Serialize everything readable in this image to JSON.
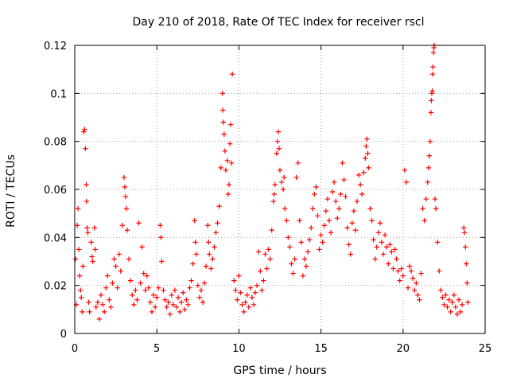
{
  "chart_data": {
    "type": "scatter",
    "title": "Day 210 of 2018, Rate Of TEC Index for receiver rscl",
    "xlabel": "GPS time / hours",
    "ylabel": "ROTI / TECUs",
    "xlim": [
      0,
      25
    ],
    "ylim": [
      0,
      0.12
    ],
    "xticks": [
      0,
      5,
      10,
      15,
      20,
      25
    ],
    "yticks": [
      0,
      0.02,
      0.04,
      0.06,
      0.08,
      0.1,
      0.12
    ],
    "xtick_labels": [
      "0",
      "5",
      "10",
      "15",
      "20",
      "25"
    ],
    "ytick_labels": [
      "0",
      "0.02",
      "0.04",
      "0.06",
      "0.08",
      "0.1",
      "0.12"
    ],
    "grid": true,
    "marker": "+",
    "series": [
      {
        "name": "ROTI",
        "color": "#ff0000",
        "points": [
          [
            0.05,
            0.031
          ],
          [
            0.1,
            0.012
          ],
          [
            0.15,
            0.045
          ],
          [
            0.2,
            0.052
          ],
          [
            0.25,
            0.035
          ],
          [
            0.3,
            0.024
          ],
          [
            0.35,
            0.018
          ],
          [
            0.4,
            0.015
          ],
          [
            0.45,
            0.009
          ],
          [
            0.5,
            0.028
          ],
          [
            0.55,
            0.084
          ],
          [
            0.6,
            0.085
          ],
          [
            0.65,
            0.077
          ],
          [
            0.7,
            0.062
          ],
          [
            0.72,
            0.055
          ],
          [
            0.75,
            0.044
          ],
          [
            0.8,
            0.042
          ],
          [
            0.85,
            0.013
          ],
          [
            0.9,
            0.009
          ],
          [
            1.0,
            0.038
          ],
          [
            1.05,
            0.032
          ],
          [
            1.1,
            0.03
          ],
          [
            1.2,
            0.044
          ],
          [
            1.25,
            0.035
          ],
          [
            1.3,
            0.011
          ],
          [
            1.4,
            0.013
          ],
          [
            1.5,
            0.006
          ],
          [
            1.6,
            0.016
          ],
          [
            1.7,
            0.012
          ],
          [
            1.8,
            0.009
          ],
          [
            1.9,
            0.019
          ],
          [
            2.0,
            0.024
          ],
          [
            2.1,
            0.014
          ],
          [
            2.2,
            0.011
          ],
          [
            2.3,
            0.021
          ],
          [
            2.4,
            0.031
          ],
          [
            2.5,
            0.028
          ],
          [
            2.6,
            0.019
          ],
          [
            2.7,
            0.033
          ],
          [
            2.8,
            0.026
          ],
          [
            2.9,
            0.045
          ],
          [
            3.0,
            0.065
          ],
          [
            3.05,
            0.061
          ],
          [
            3.1,
            0.057
          ],
          [
            3.15,
            0.052
          ],
          [
            3.2,
            0.043
          ],
          [
            3.3,
            0.031
          ],
          [
            3.4,
            0.022
          ],
          [
            3.5,
            0.016
          ],
          [
            3.6,
            0.012
          ],
          [
            3.7,
            0.018
          ],
          [
            3.8,
            0.014
          ],
          [
            3.9,
            0.046
          ],
          [
            4.0,
            0.021
          ],
          [
            4.1,
            0.036
          ],
          [
            4.2,
            0.025
          ],
          [
            4.3,
            0.018
          ],
          [
            4.4,
            0.024
          ],
          [
            4.5,
            0.019
          ],
          [
            4.6,
            0.013
          ],
          [
            4.7,
            0.009
          ],
          [
            4.8,
            0.016
          ],
          [
            4.9,
            0.011
          ],
          [
            5.0,
            0.015
          ],
          [
            5.1,
            0.019
          ],
          [
            5.2,
            0.045
          ],
          [
            5.25,
            0.04
          ],
          [
            5.3,
            0.03
          ],
          [
            5.4,
            0.018
          ],
          [
            5.5,
            0.014
          ],
          [
            5.6,
            0.011
          ],
          [
            5.7,
            0.013
          ],
          [
            5.8,
            0.008
          ],
          [
            5.9,
            0.016
          ],
          [
            6.0,
            0.012
          ],
          [
            6.1,
            0.018
          ],
          [
            6.2,
            0.011
          ],
          [
            6.3,
            0.015
          ],
          [
            6.4,
            0.009
          ],
          [
            6.5,
            0.013
          ],
          [
            6.6,
            0.017
          ],
          [
            6.7,
            0.01
          ],
          [
            6.8,
            0.014
          ],
          [
            6.9,
            0.012
          ],
          [
            7.0,
            0.019
          ],
          [
            7.1,
            0.022
          ],
          [
            7.2,
            0.029
          ],
          [
            7.3,
            0.047
          ],
          [
            7.35,
            0.038
          ],
          [
            7.4,
            0.033
          ],
          [
            7.5,
            0.02
          ],
          [
            7.6,
            0.015
          ],
          [
            7.7,
            0.018
          ],
          [
            7.8,
            0.013
          ],
          [
            7.9,
            0.021
          ],
          [
            8.0,
            0.028
          ],
          [
            8.1,
            0.045
          ],
          [
            8.15,
            0.038
          ],
          [
            8.2,
            0.033
          ],
          [
            8.3,
            0.027
          ],
          [
            8.4,
            0.031
          ],
          [
            8.5,
            0.036
          ],
          [
            8.6,
            0.042
          ],
          [
            8.7,
            0.046
          ],
          [
            8.8,
            0.053
          ],
          [
            8.9,
            0.069
          ],
          [
            9.0,
            0.1
          ],
          [
            9.02,
            0.093
          ],
          [
            9.05,
            0.088
          ],
          [
            9.1,
            0.083
          ],
          [
            9.15,
            0.076
          ],
          [
            9.2,
            0.068
          ],
          [
            9.3,
            0.072
          ],
          [
            9.35,
            0.058
          ],
          [
            9.4,
            0.062
          ],
          [
            9.45,
            0.079
          ],
          [
            9.5,
            0.087
          ],
          [
            9.55,
            0.071
          ],
          [
            9.6,
            0.108
          ],
          [
            9.7,
            0.022
          ],
          [
            9.8,
            0.018
          ],
          [
            9.9,
            0.014
          ],
          [
            10.0,
            0.024
          ],
          [
            10.1,
            0.017
          ],
          [
            10.2,
            0.012
          ],
          [
            10.3,
            0.009
          ],
          [
            10.4,
            0.013
          ],
          [
            10.5,
            0.016
          ],
          [
            10.6,
            0.011
          ],
          [
            10.7,
            0.019
          ],
          [
            10.8,
            0.015
          ],
          [
            10.9,
            0.012
          ],
          [
            11.0,
            0.017
          ],
          [
            11.1,
            0.02
          ],
          [
            11.2,
            0.034
          ],
          [
            11.3,
            0.026
          ],
          [
            11.4,
            0.018
          ],
          [
            11.5,
            0.022
          ],
          [
            11.6,
            0.033
          ],
          [
            11.7,
            0.027
          ],
          [
            11.8,
            0.035
          ],
          [
            11.9,
            0.031
          ],
          [
            12.0,
            0.043
          ],
          [
            12.1,
            0.055
          ],
          [
            12.15,
            0.058
          ],
          [
            12.2,
            0.062
          ],
          [
            12.3,
            0.075
          ],
          [
            12.35,
            0.08
          ],
          [
            12.4,
            0.084
          ],
          [
            12.45,
            0.077
          ],
          [
            12.5,
            0.068
          ],
          [
            12.6,
            0.063
          ],
          [
            12.7,
            0.06
          ],
          [
            12.75,
            0.065
          ],
          [
            12.8,
            0.052
          ],
          [
            12.9,
            0.047
          ],
          [
            13.0,
            0.04
          ],
          [
            13.1,
            0.036
          ],
          [
            13.2,
            0.029
          ],
          [
            13.3,
            0.025
          ],
          [
            13.4,
            0.031
          ],
          [
            13.5,
            0.065
          ],
          [
            13.6,
            0.071
          ],
          [
            13.7,
            0.047
          ],
          [
            13.8,
            0.038
          ],
          [
            13.9,
            0.024
          ],
          [
            14.0,
            0.031
          ],
          [
            14.1,
            0.028
          ],
          [
            14.2,
            0.034
          ],
          [
            14.3,
            0.039
          ],
          [
            14.4,
            0.044
          ],
          [
            14.5,
            0.052
          ],
          [
            14.6,
            0.058
          ],
          [
            14.7,
            0.061
          ],
          [
            14.8,
            0.049
          ],
          [
            14.9,
            0.035
          ],
          [
            15.0,
            0.041
          ],
          [
            15.1,
            0.038
          ],
          [
            15.2,
            0.045
          ],
          [
            15.3,
            0.051
          ],
          [
            15.4,
            0.056
          ],
          [
            15.5,
            0.047
          ],
          [
            15.6,
            0.042
          ],
          [
            15.7,
            0.059
          ],
          [
            15.8,
            0.063
          ],
          [
            15.9,
            0.055
          ],
          [
            16.0,
            0.048
          ],
          [
            16.1,
            0.052
          ],
          [
            16.2,
            0.058
          ],
          [
            16.3,
            0.071
          ],
          [
            16.4,
            0.064
          ],
          [
            16.5,
            0.057
          ],
          [
            16.6,
            0.044
          ],
          [
            16.7,
            0.037
          ],
          [
            16.8,
            0.033
          ],
          [
            16.9,
            0.046
          ],
          [
            17.0,
            0.051
          ],
          [
            17.1,
            0.043
          ],
          [
            17.2,
            0.055
          ],
          [
            17.3,
            0.066
          ],
          [
            17.4,
            0.062
          ],
          [
            17.5,
            0.058
          ],
          [
            17.6,
            0.067
          ],
          [
            17.7,
            0.073
          ],
          [
            17.75,
            0.078
          ],
          [
            17.8,
            0.081
          ],
          [
            17.85,
            0.075
          ],
          [
            17.9,
            0.069
          ],
          [
            18.0,
            0.052
          ],
          [
            18.1,
            0.047
          ],
          [
            18.2,
            0.039
          ],
          [
            18.3,
            0.031
          ],
          [
            18.4,
            0.036
          ],
          [
            18.5,
            0.042
          ],
          [
            18.6,
            0.046
          ],
          [
            18.7,
            0.038
          ],
          [
            18.8,
            0.033
          ],
          [
            18.9,
            0.041
          ],
          [
            19.0,
            0.036
          ],
          [
            19.1,
            0.029
          ],
          [
            19.2,
            0.037
          ],
          [
            19.3,
            0.034
          ],
          [
            19.4,
            0.027
          ],
          [
            19.5,
            0.035
          ],
          [
            19.6,
            0.031
          ],
          [
            19.7,
            0.026
          ],
          [
            19.8,
            0.022
          ],
          [
            19.9,
            0.027
          ],
          [
            20.0,
            0.024
          ],
          [
            20.1,
            0.068
          ],
          [
            20.2,
            0.063
          ],
          [
            20.3,
            0.019
          ],
          [
            20.4,
            0.028
          ],
          [
            20.5,
            0.026
          ],
          [
            20.6,
            0.023
          ],
          [
            20.7,
            0.018
          ],
          [
            20.8,
            0.021
          ],
          [
            20.9,
            0.016
          ],
          [
            21.0,
            0.014
          ],
          [
            21.1,
            0.025
          ],
          [
            21.2,
            0.052
          ],
          [
            21.3,
            0.047
          ],
          [
            21.4,
            0.056
          ],
          [
            21.5,
            0.063
          ],
          [
            21.55,
            0.069
          ],
          [
            21.6,
            0.074
          ],
          [
            21.65,
            0.08
          ],
          [
            21.7,
            0.092
          ],
          [
            21.72,
            0.097
          ],
          [
            21.75,
            0.1
          ],
          [
            21.78,
            0.101
          ],
          [
            21.8,
            0.108
          ],
          [
            21.82,
            0.111
          ],
          [
            21.85,
            0.117
          ],
          [
            21.88,
            0.119
          ],
          [
            21.9,
            0.12
          ],
          [
            21.95,
            0.056
          ],
          [
            22.0,
            0.052
          ],
          [
            22.1,
            0.038
          ],
          [
            22.2,
            0.026
          ],
          [
            22.3,
            0.018
          ],
          [
            22.4,
            0.015
          ],
          [
            22.5,
            0.012
          ],
          [
            22.6,
            0.016
          ],
          [
            22.7,
            0.011
          ],
          [
            22.8,
            0.014
          ],
          [
            22.9,
            0.009
          ],
          [
            23.0,
            0.013
          ],
          [
            23.1,
            0.016
          ],
          [
            23.2,
            0.011
          ],
          [
            23.3,
            0.008
          ],
          [
            23.4,
            0.014
          ],
          [
            23.5,
            0.009
          ],
          [
            23.6,
            0.012
          ],
          [
            23.7,
            0.044
          ],
          [
            23.75,
            0.042
          ],
          [
            23.8,
            0.036
          ],
          [
            23.85,
            0.029
          ],
          [
            23.9,
            0.021
          ],
          [
            23.95,
            0.013
          ]
        ]
      }
    ]
  }
}
